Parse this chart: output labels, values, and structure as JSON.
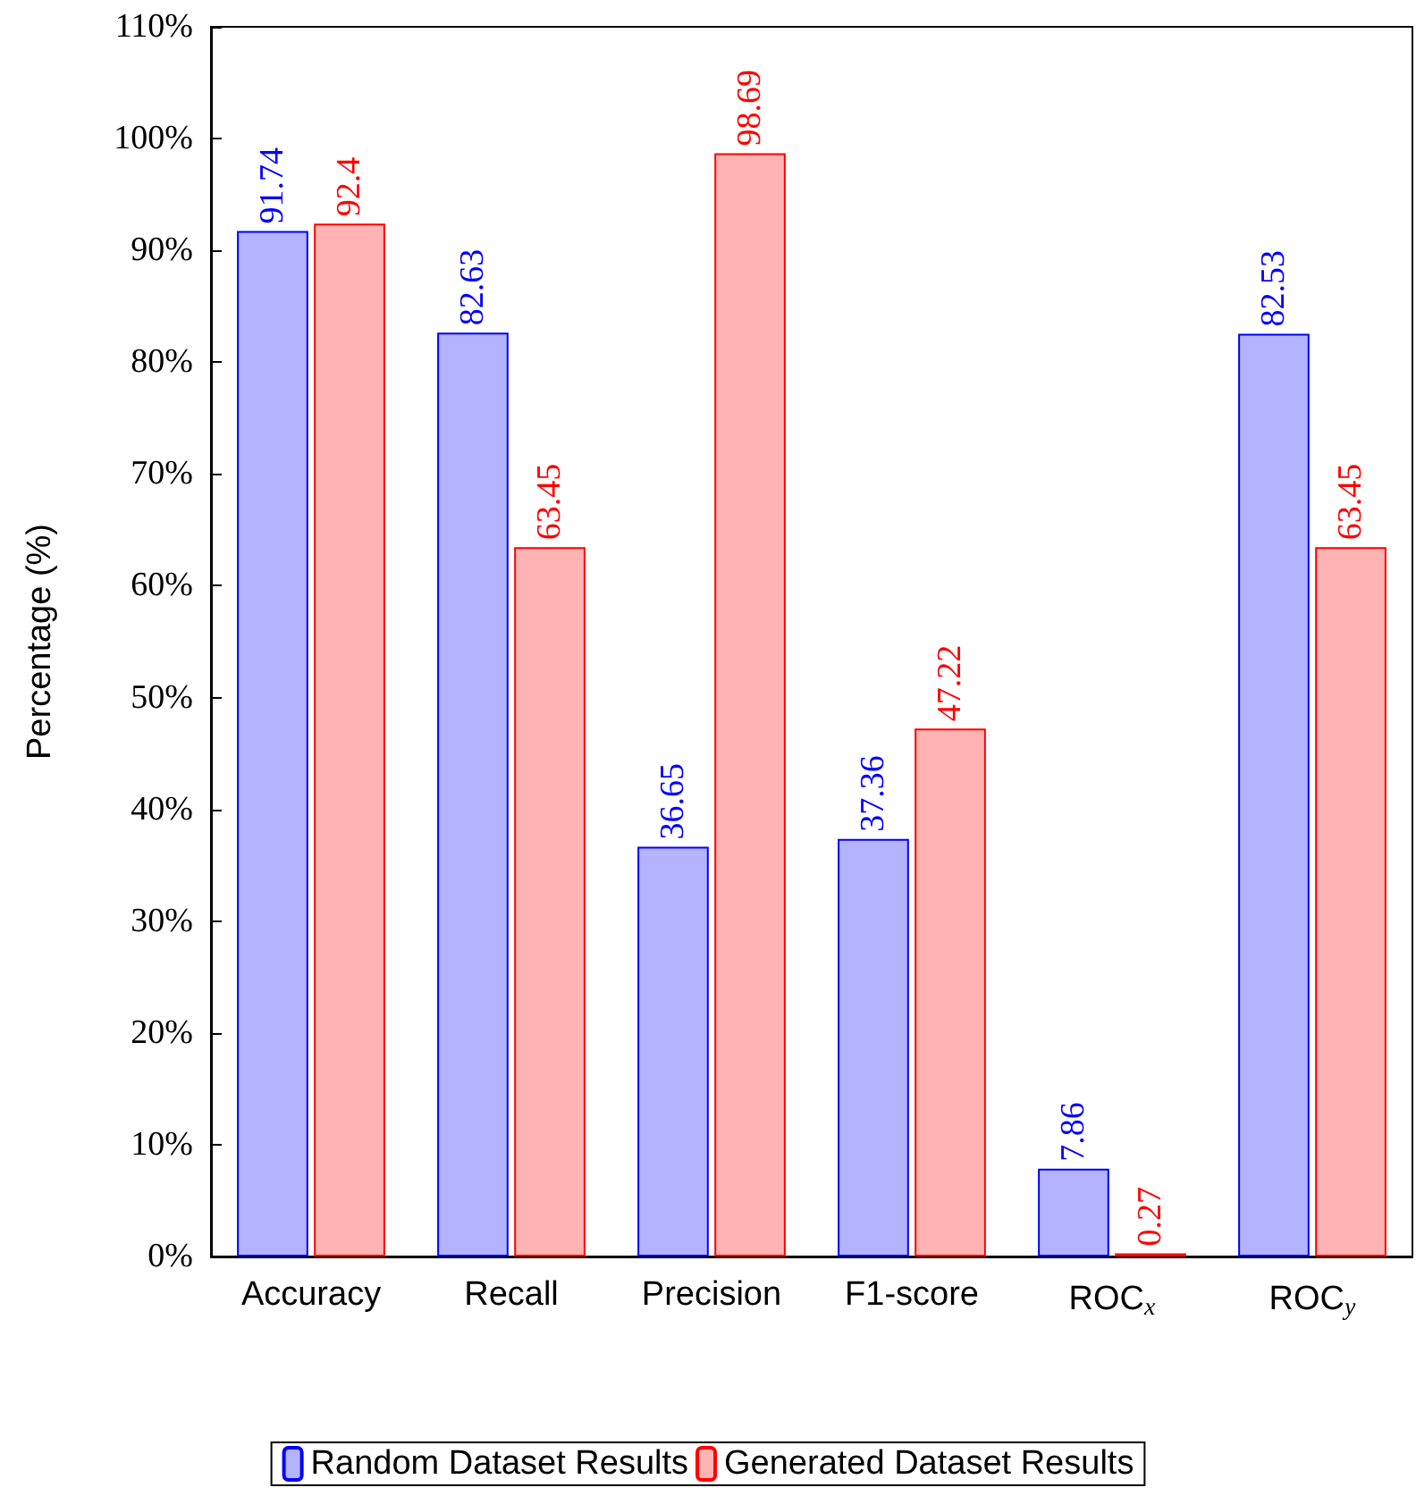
{
  "chart_data": {
    "type": "bar",
    "ylabel": "Percentage (%)",
    "categories": [
      "Accuracy",
      "Recall",
      "Precision",
      "F1-score",
      "ROC$_{x}$",
      "ROC$_{y}$"
    ],
    "series": [
      {
        "name": "Random Dataset Results",
        "color": "#b3b3ff",
        "values": [
          91.74,
          82.63,
          36.65,
          37.36,
          7.86,
          82.53
        ]
      },
      {
        "name": "Generated Dataset Results",
        "color": "#ffb3b3",
        "values": [
          92.4,
          63.45,
          98.69,
          47.22,
          0.27,
          63.45
        ]
      }
    ],
    "ylim": [
      0,
      110
    ],
    "yticks": [
      {
        "value": 0,
        "label": "0%"
      },
      {
        "value": 10,
        "label": "10%"
      },
      {
        "value": 20,
        "label": "20%"
      },
      {
        "value": 30,
        "label": "30%"
      },
      {
        "value": 40,
        "label": "40%"
      },
      {
        "value": 50,
        "label": "50%"
      },
      {
        "value": 60,
        "label": "60%"
      },
      {
        "value": 70,
        "label": "70%"
      },
      {
        "value": 80,
        "label": "80%"
      },
      {
        "value": 90,
        "label": "90%"
      },
      {
        "value": 100,
        "label": "100%"
      },
      {
        "value": 110,
        "label": "110%"
      }
    ],
    "data_labels": true,
    "grid": false,
    "legend": "bottom"
  }
}
